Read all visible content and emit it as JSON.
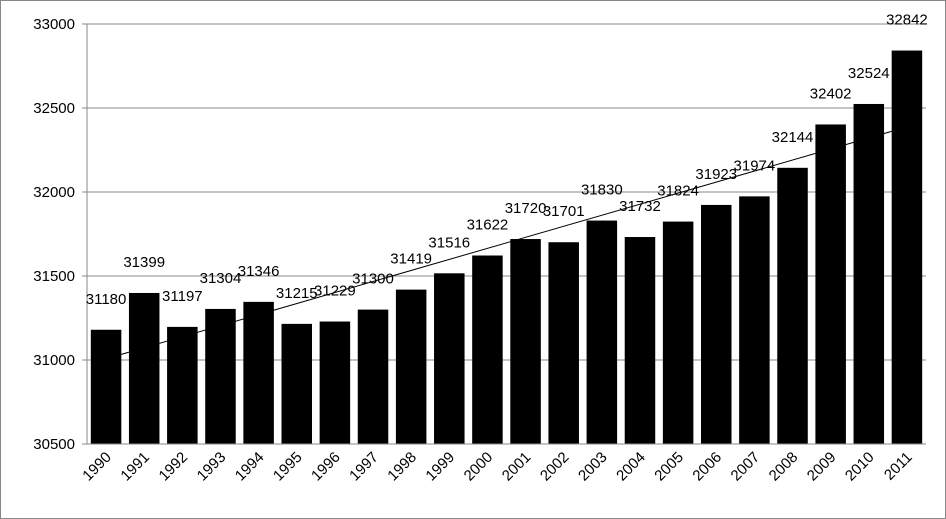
{
  "chart_data": {
    "type": "bar",
    "categories": [
      "1990",
      "1991",
      "1992",
      "1993",
      "1994",
      "1995",
      "1996",
      "1997",
      "1998",
      "1999",
      "2000",
      "2001",
      "2002",
      "2003",
      "2004",
      "2005",
      "2006",
      "2007",
      "2008",
      "2009",
      "2010",
      "2011"
    ],
    "values": [
      31180,
      31399,
      31197,
      31304,
      31346,
      31215,
      31229,
      31300,
      31419,
      31516,
      31622,
      31720,
      31701,
      31830,
      31732,
      31824,
      31923,
      31974,
      32144,
      32402,
      32524,
      32842
    ],
    "color": "#000000",
    "ylim": [
      30500,
      33000
    ],
    "yticks": [
      30500,
      31000,
      31500,
      32000,
      32500,
      33000
    ],
    "grid": true,
    "trendline": true,
    "data_labels": true
  }
}
